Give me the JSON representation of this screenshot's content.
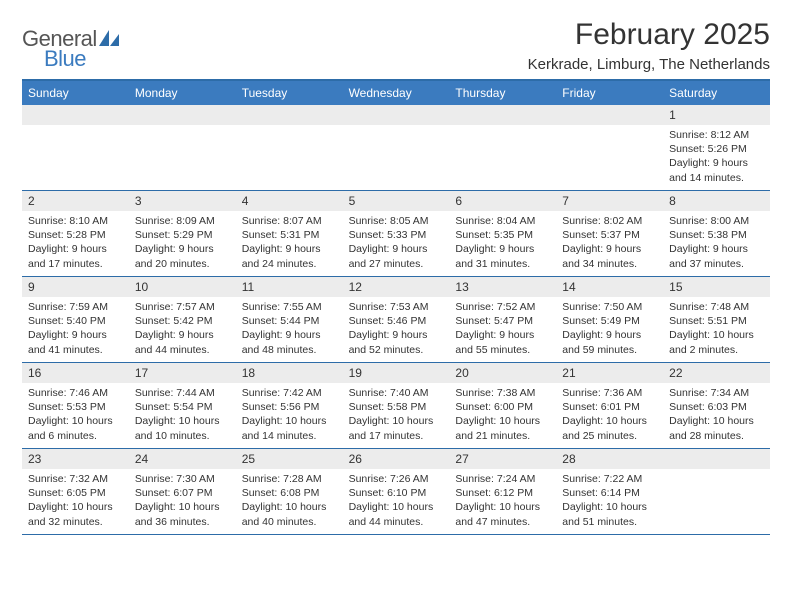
{
  "logo": {
    "word1": "General",
    "word2": "Blue",
    "icon_color": "#2d6ca8"
  },
  "title": "February 2025",
  "subtitle": "Kerkrade, Limburg, The Netherlands",
  "colors": {
    "header_band": "#3b7bbf",
    "rule": "#2d6ca8",
    "daynum_bg": "#ececec",
    "text": "#333333",
    "page_bg": "#ffffff"
  },
  "weekdays": [
    "Sunday",
    "Monday",
    "Tuesday",
    "Wednesday",
    "Thursday",
    "Friday",
    "Saturday"
  ],
  "weeks": [
    [
      {
        "day": "",
        "sunrise": "",
        "sunset": "",
        "daylight": ""
      },
      {
        "day": "",
        "sunrise": "",
        "sunset": "",
        "daylight": ""
      },
      {
        "day": "",
        "sunrise": "",
        "sunset": "",
        "daylight": ""
      },
      {
        "day": "",
        "sunrise": "",
        "sunset": "",
        "daylight": ""
      },
      {
        "day": "",
        "sunrise": "",
        "sunset": "",
        "daylight": ""
      },
      {
        "day": "",
        "sunrise": "",
        "sunset": "",
        "daylight": ""
      },
      {
        "day": "1",
        "sunrise": "Sunrise: 8:12 AM",
        "sunset": "Sunset: 5:26 PM",
        "daylight": "Daylight: 9 hours and 14 minutes."
      }
    ],
    [
      {
        "day": "2",
        "sunrise": "Sunrise: 8:10 AM",
        "sunset": "Sunset: 5:28 PM",
        "daylight": "Daylight: 9 hours and 17 minutes."
      },
      {
        "day": "3",
        "sunrise": "Sunrise: 8:09 AM",
        "sunset": "Sunset: 5:29 PM",
        "daylight": "Daylight: 9 hours and 20 minutes."
      },
      {
        "day": "4",
        "sunrise": "Sunrise: 8:07 AM",
        "sunset": "Sunset: 5:31 PM",
        "daylight": "Daylight: 9 hours and 24 minutes."
      },
      {
        "day": "5",
        "sunrise": "Sunrise: 8:05 AM",
        "sunset": "Sunset: 5:33 PM",
        "daylight": "Daylight: 9 hours and 27 minutes."
      },
      {
        "day": "6",
        "sunrise": "Sunrise: 8:04 AM",
        "sunset": "Sunset: 5:35 PM",
        "daylight": "Daylight: 9 hours and 31 minutes."
      },
      {
        "day": "7",
        "sunrise": "Sunrise: 8:02 AM",
        "sunset": "Sunset: 5:37 PM",
        "daylight": "Daylight: 9 hours and 34 minutes."
      },
      {
        "day": "8",
        "sunrise": "Sunrise: 8:00 AM",
        "sunset": "Sunset: 5:38 PM",
        "daylight": "Daylight: 9 hours and 37 minutes."
      }
    ],
    [
      {
        "day": "9",
        "sunrise": "Sunrise: 7:59 AM",
        "sunset": "Sunset: 5:40 PM",
        "daylight": "Daylight: 9 hours and 41 minutes."
      },
      {
        "day": "10",
        "sunrise": "Sunrise: 7:57 AM",
        "sunset": "Sunset: 5:42 PM",
        "daylight": "Daylight: 9 hours and 44 minutes."
      },
      {
        "day": "11",
        "sunrise": "Sunrise: 7:55 AM",
        "sunset": "Sunset: 5:44 PM",
        "daylight": "Daylight: 9 hours and 48 minutes."
      },
      {
        "day": "12",
        "sunrise": "Sunrise: 7:53 AM",
        "sunset": "Sunset: 5:46 PM",
        "daylight": "Daylight: 9 hours and 52 minutes."
      },
      {
        "day": "13",
        "sunrise": "Sunrise: 7:52 AM",
        "sunset": "Sunset: 5:47 PM",
        "daylight": "Daylight: 9 hours and 55 minutes."
      },
      {
        "day": "14",
        "sunrise": "Sunrise: 7:50 AM",
        "sunset": "Sunset: 5:49 PM",
        "daylight": "Daylight: 9 hours and 59 minutes."
      },
      {
        "day": "15",
        "sunrise": "Sunrise: 7:48 AM",
        "sunset": "Sunset: 5:51 PM",
        "daylight": "Daylight: 10 hours and 2 minutes."
      }
    ],
    [
      {
        "day": "16",
        "sunrise": "Sunrise: 7:46 AM",
        "sunset": "Sunset: 5:53 PM",
        "daylight": "Daylight: 10 hours and 6 minutes."
      },
      {
        "day": "17",
        "sunrise": "Sunrise: 7:44 AM",
        "sunset": "Sunset: 5:54 PM",
        "daylight": "Daylight: 10 hours and 10 minutes."
      },
      {
        "day": "18",
        "sunrise": "Sunrise: 7:42 AM",
        "sunset": "Sunset: 5:56 PM",
        "daylight": "Daylight: 10 hours and 14 minutes."
      },
      {
        "day": "19",
        "sunrise": "Sunrise: 7:40 AM",
        "sunset": "Sunset: 5:58 PM",
        "daylight": "Daylight: 10 hours and 17 minutes."
      },
      {
        "day": "20",
        "sunrise": "Sunrise: 7:38 AM",
        "sunset": "Sunset: 6:00 PM",
        "daylight": "Daylight: 10 hours and 21 minutes."
      },
      {
        "day": "21",
        "sunrise": "Sunrise: 7:36 AM",
        "sunset": "Sunset: 6:01 PM",
        "daylight": "Daylight: 10 hours and 25 minutes."
      },
      {
        "day": "22",
        "sunrise": "Sunrise: 7:34 AM",
        "sunset": "Sunset: 6:03 PM",
        "daylight": "Daylight: 10 hours and 28 minutes."
      }
    ],
    [
      {
        "day": "23",
        "sunrise": "Sunrise: 7:32 AM",
        "sunset": "Sunset: 6:05 PM",
        "daylight": "Daylight: 10 hours and 32 minutes."
      },
      {
        "day": "24",
        "sunrise": "Sunrise: 7:30 AM",
        "sunset": "Sunset: 6:07 PM",
        "daylight": "Daylight: 10 hours and 36 minutes."
      },
      {
        "day": "25",
        "sunrise": "Sunrise: 7:28 AM",
        "sunset": "Sunset: 6:08 PM",
        "daylight": "Daylight: 10 hours and 40 minutes."
      },
      {
        "day": "26",
        "sunrise": "Sunrise: 7:26 AM",
        "sunset": "Sunset: 6:10 PM",
        "daylight": "Daylight: 10 hours and 44 minutes."
      },
      {
        "day": "27",
        "sunrise": "Sunrise: 7:24 AM",
        "sunset": "Sunset: 6:12 PM",
        "daylight": "Daylight: 10 hours and 47 minutes."
      },
      {
        "day": "28",
        "sunrise": "Sunrise: 7:22 AM",
        "sunset": "Sunset: 6:14 PM",
        "daylight": "Daylight: 10 hours and 51 minutes."
      },
      {
        "day": "",
        "sunrise": "",
        "sunset": "",
        "daylight": ""
      }
    ]
  ]
}
